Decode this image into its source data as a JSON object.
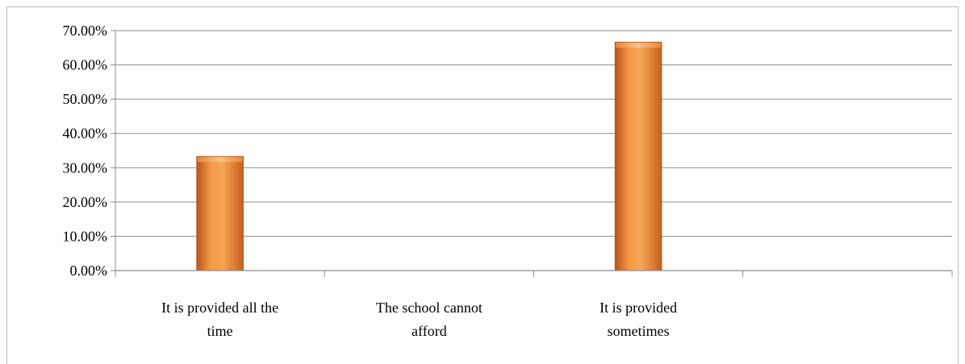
{
  "chart_data": {
    "type": "bar",
    "title": "",
    "xlabel": "",
    "ylabel": "",
    "categories": [
      [
        "It is provided all the",
        "time"
      ],
      [
        "The school cannot",
        "afford"
      ],
      [
        "It is provided",
        "sometimes"
      ],
      [
        "",
        ""
      ]
    ],
    "values": [
      33.33,
      0,
      66.67,
      0
    ],
    "ylim": [
      0,
      70
    ],
    "yticks": [
      0,
      10,
      20,
      30,
      40,
      50,
      60,
      70
    ],
    "ytick_labels": [
      "0.00%",
      "10.00%",
      "20.00%",
      "30.00%",
      "40.00%",
      "50.00%",
      "60.00%",
      "70.00%"
    ],
    "grid": true,
    "legend": "none",
    "colors": {
      "bar_light": "#f7a050",
      "bar_mid": "#e47a23",
      "bar_dark": "#b8551a",
      "bar_top": "#f9b574",
      "gridline": "#8c8c8c",
      "axis": "#8c8c8c"
    }
  }
}
